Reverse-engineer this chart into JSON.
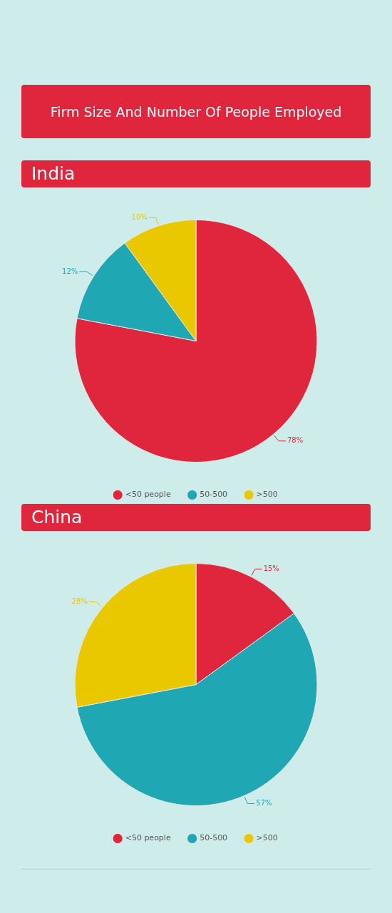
{
  "chart_data": [
    {
      "type": "pie",
      "title": "Firm Size And Number Of People Employed",
      "subtitle": "India",
      "categories": [
        "<50 people",
        "50-500",
        ">500"
      ],
      "values": [
        78,
        12,
        10
      ],
      "colors": [
        "#e0263d",
        "#1fa8b4",
        "#eac800"
      ],
      "value_labels": [
        "78%",
        "12%",
        "10%"
      ],
      "legend": "bottom"
    },
    {
      "type": "pie",
      "title": "China",
      "categories": [
        "<50 people",
        "50-500",
        ">500"
      ],
      "values": [
        15,
        57,
        28
      ],
      "colors": [
        "#e0263d",
        "#1fa8b4",
        "#eac800"
      ],
      "value_labels": [
        "15%",
        "57%",
        "28%"
      ],
      "legend": "bottom"
    }
  ]
}
